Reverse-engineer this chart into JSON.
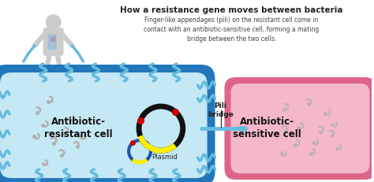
{
  "title": "How a resistance gene moves between bacteria",
  "subtitle": "Finger-like appendages (pili) on the resistant cell come in\ncontact with an antibiotic-sensitive cell, forming a mating\nbridge between the two cells.",
  "bg_color": "#ffffff",
  "cell1_label": "Antibiotic-\nresistant cell",
  "cell2_label": "Antibiotic-\nsensitive cell",
  "plasmid_label": "Plasmid",
  "pili_label": "Pili\nbridge",
  "cell1_fill": "#aad9ef",
  "cell1_edge": "#2277bb",
  "cell1_inner_fill": "#c5e8f5",
  "cell2_fill": "#f5b8c8",
  "cell2_edge": "#dd6688",
  "human_color": "#cccccc",
  "pili_color": "#66bbdd",
  "bacteria_color": "#b0b0b0",
  "plasmid_edge": "#111111",
  "plasmid_yellow": "#ffee00",
  "plasmid_red": "#cc0000",
  "plasmid_blue": "#2255aa",
  "text_dark": "#222222",
  "text_subtitle": "#444444"
}
